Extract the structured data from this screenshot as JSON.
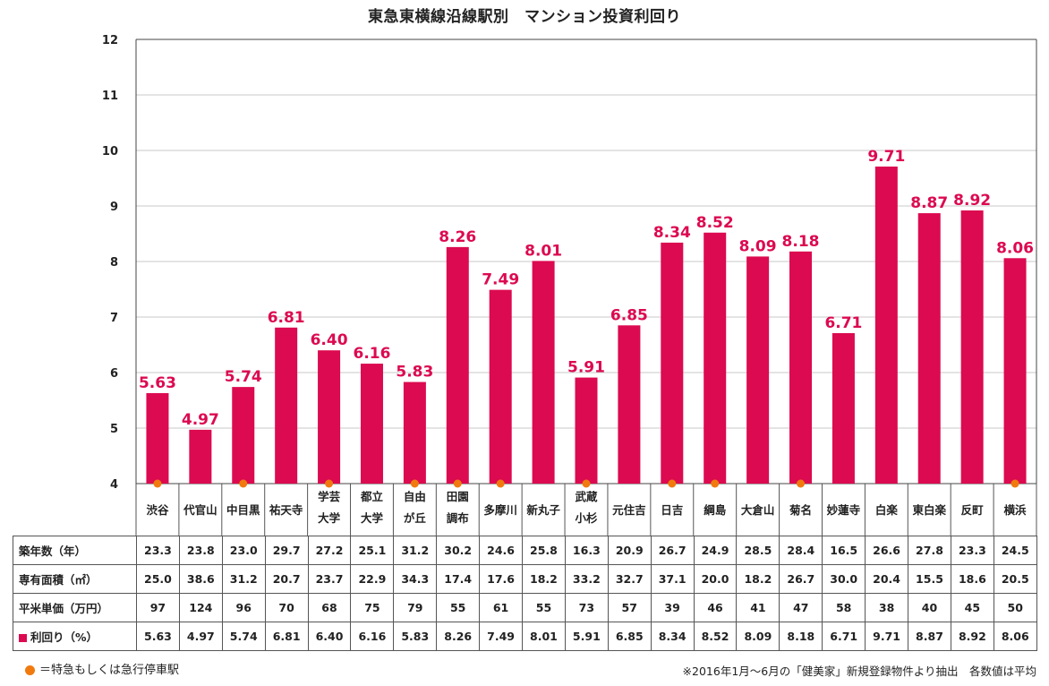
{
  "title": "東急東横線沿線駅別　マンション投資利回り",
  "chart_data": {
    "type": "bar",
    "categories": [
      "渋谷",
      "代官山",
      "中目黒",
      "祐天寺",
      "学芸\n大学",
      "都立\n大学",
      "自由\nが丘",
      "田園\n調布",
      "多摩川",
      "新丸子",
      "武蔵\n小杉",
      "元住吉",
      "日吉",
      "綱島",
      "大倉山",
      "菊名",
      "妙蓮寺",
      "白楽",
      "東白楽",
      "反町",
      "横浜"
    ],
    "values": [
      5.63,
      4.97,
      5.74,
      6.81,
      6.4,
      6.16,
      5.83,
      8.26,
      7.49,
      8.01,
      5.91,
      6.85,
      8.34,
      8.52,
      8.09,
      8.18,
      6.71,
      9.71,
      8.87,
      8.92,
      8.06
    ],
    "value_labels": [
      "5.63",
      "4.97",
      "5.74",
      "6.81",
      "6.40",
      "6.16",
      "5.83",
      "8.26",
      "7.49",
      "8.01",
      "5.91",
      "6.85",
      "8.34",
      "8.52",
      "8.09",
      "8.18",
      "6.71",
      "9.71",
      "8.87",
      "8.92",
      "8.06"
    ],
    "express_stop": [
      true,
      false,
      true,
      false,
      true,
      false,
      true,
      true,
      true,
      false,
      true,
      false,
      true,
      true,
      false,
      true,
      false,
      false,
      false,
      false,
      true
    ],
    "ylim": [
      4,
      12
    ],
    "yticks": [
      "4",
      "5",
      "6",
      "7",
      "8",
      "9",
      "10",
      "11",
      "12"
    ],
    "grid": true,
    "colors": {
      "bar": "#dc0a50",
      "dot": "#f07a0e",
      "grid": "#c8c8c8"
    }
  },
  "table": {
    "rows": [
      {
        "label": "築年数（年）",
        "values": [
          "23.3",
          "23.8",
          "23.0",
          "29.7",
          "27.2",
          "25.1",
          "31.2",
          "30.2",
          "24.6",
          "25.8",
          "16.3",
          "20.9",
          "26.7",
          "24.9",
          "28.5",
          "28.4",
          "16.5",
          "26.6",
          "27.8",
          "23.3",
          "24.5"
        ]
      },
      {
        "label": "専有面積（㎡）",
        "values": [
          "25.0",
          "38.6",
          "31.2",
          "20.7",
          "23.7",
          "22.9",
          "34.3",
          "17.4",
          "17.6",
          "18.2",
          "33.2",
          "32.7",
          "37.1",
          "20.0",
          "18.2",
          "26.7",
          "30.0",
          "20.4",
          "15.5",
          "18.6",
          "20.5"
        ]
      },
      {
        "label": "平米単価（万円）",
        "values": [
          "97",
          "124",
          "96",
          "70",
          "68",
          "75",
          "79",
          "55",
          "61",
          "55",
          "73",
          "57",
          "39",
          "46",
          "41",
          "47",
          "58",
          "38",
          "40",
          "45",
          "50"
        ]
      },
      {
        "label": "利回り（%）",
        "marker": true,
        "values": [
          "5.63",
          "4.97",
          "5.74",
          "6.81",
          "6.40",
          "6.16",
          "5.83",
          "8.26",
          "7.49",
          "8.01",
          "5.91",
          "6.85",
          "8.34",
          "8.52",
          "8.09",
          "8.18",
          "6.71",
          "9.71",
          "8.87",
          "8.92",
          "8.06"
        ]
      }
    ]
  },
  "notes": {
    "legend": "＝特急もしくは急行停車駅",
    "source": "※2016年1月～6月の「健美家」新規登録物件より抽出　各数値は平均"
  }
}
